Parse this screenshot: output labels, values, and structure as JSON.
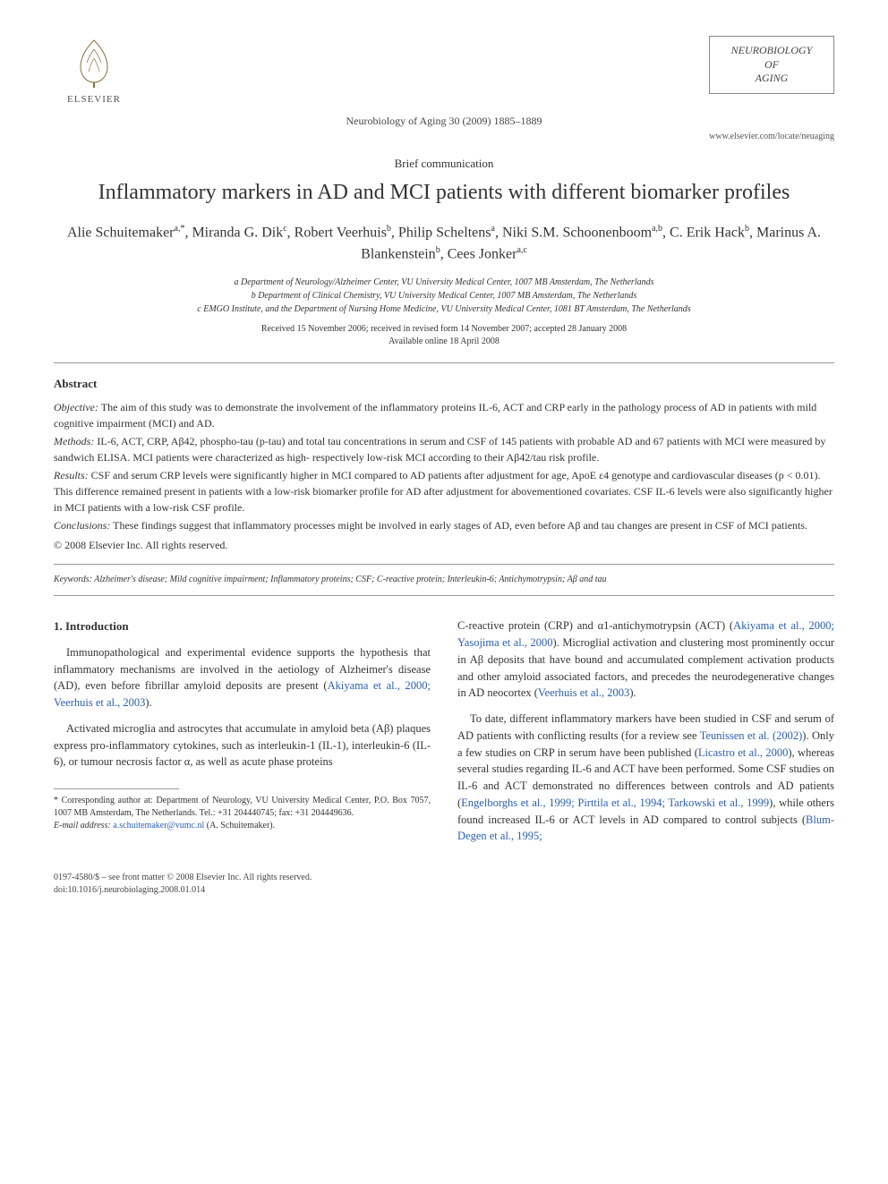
{
  "header": {
    "publisher_name": "ELSEVIER",
    "citation": "Neurobiology of Aging 30 (2009) 1885–1889",
    "journal_name_line1": "NEUROBIOLOGY",
    "journal_name_line2": "OF",
    "journal_name_line3": "AGING",
    "locate_url": "www.elsevier.com/locate/neuaging"
  },
  "article": {
    "type": "Brief communication",
    "title": "Inflammatory markers in AD and MCI patients with different biomarker profiles",
    "authors_html": "Alie Schuitemaker<sup>a,*</sup>, Miranda G. Dik<sup>c</sup>, Robert Veerhuis<sup>b</sup>, Philip Scheltens<sup>a</sup>, Niki S.M. Schoonenboom<sup>a,b</sup>, C. Erik Hack<sup>b</sup>, Marinus A. Blankenstein<sup>b</sup>, Cees Jonker<sup>a,c</sup>",
    "affiliations": [
      "a Department of Neurology/Alzheimer Center, VU University Medical Center, 1007 MB Amsterdam, The Netherlands",
      "b Department of Clinical Chemistry, VU University Medical Center, 1007 MB Amsterdam, The Netherlands",
      "c EMGO Institute, and the Department of Nursing Home Medicine, VU University Medical Center, 1081 BT Amsterdam, The Netherlands"
    ],
    "dates_line1": "Received 15 November 2006; received in revised form 14 November 2007; accepted 28 January 2008",
    "dates_line2": "Available online 18 April 2008"
  },
  "abstract": {
    "heading": "Abstract",
    "objective_label": "Objective:",
    "objective": " The aim of this study was to demonstrate the involvement of the inflammatory proteins IL-6, ACT and CRP early in the pathology process of AD in patients with mild cognitive impairment (MCI) and AD.",
    "methods_label": "Methods:",
    "methods": " IL-6, ACT, CRP, Aβ42, phospho-tau (p-tau) and total tau concentrations in serum and CSF of 145 patients with probable AD and 67 patients with MCI were measured by sandwich ELISA. MCI patients were characterized as high- respectively low-risk MCI according to their Aβ42/tau risk profile.",
    "results_label": "Results:",
    "results": " CSF and serum CRP levels were significantly higher in MCI compared to AD patients after adjustment for age, ApoE ε4 genotype and cardiovascular diseases (p < 0.01). This difference remained present in patients with a low-risk biomarker profile for AD after adjustment for abovementioned covariates. CSF IL-6 levels were also significantly higher in MCI patients with a low-risk CSF profile.",
    "conclusions_label": "Conclusions:",
    "conclusions": " These findings suggest that inflammatory processes might be involved in early stages of AD, even before Aβ and tau changes are present in CSF of MCI patients.",
    "copyright": "© 2008 Elsevier Inc. All rights reserved."
  },
  "keywords": {
    "label": "Keywords:",
    "text": " Alzheimer's disease; Mild cognitive impairment; Inflammatory proteins; CSF; C-reactive protein; Interleukin-6; Antichymotrypsin; Aβ and tau"
  },
  "body": {
    "section1_heading": "1. Introduction",
    "col1_p1_a": "Immunopathological and experimental evidence supports the hypothesis that inflammatory mechanisms are involved in the aetiology of Alzheimer's disease (AD), even before fibrillar amyloid deposits are present (",
    "col1_p1_ref": "Akiyama et al., 2000; Veerhuis et al., 2003",
    "col1_p1_b": ").",
    "col1_p2": "Activated microglia and astrocytes that accumulate in amyloid beta (Aβ) plaques express pro-inflammatory cytokines, such as interleukin-1 (IL-1), interleukin-6 (IL-6), or tumour necrosis factor α, as well as acute phase proteins",
    "col2_p1_a": "C-reactive protein (CRP) and α1-antichymotrypsin (ACT) (",
    "col2_p1_ref1": "Akiyama et al., 2000; Yasojima et al., 2000",
    "col2_p1_b": "). Microglial activation and clustering most prominently occur in Aβ deposits that have bound and accumulated complement activation products and other amyloid associated factors, and precedes the neurodegenerative changes in AD neocortex (",
    "col2_p1_ref2": "Veerhuis et al., 2003",
    "col2_p1_c": ").",
    "col2_p2_a": "To date, different inflammatory markers have been studied in CSF and serum of AD patients with conflicting results (for a review see ",
    "col2_p2_ref1": "Teunissen et al. (2002)",
    "col2_p2_b": "). Only a few studies on CRP in serum have been published (",
    "col2_p2_ref2": "Licastro et al., 2000",
    "col2_p2_c": "), whereas several studies regarding IL-6 and ACT have been performed. Some CSF studies on IL-6 and ACT demonstrated no differences between controls and AD patients (",
    "col2_p2_ref3": "Engelborghs et al., 1999; Pirttila et al., 1994; Tarkowski et al., 1999",
    "col2_p2_d": "), while others found increased IL-6 or ACT levels in AD compared to control subjects (",
    "col2_p2_ref4": "Blum-Degen et al., 1995;",
    "col2_p2_e": ""
  },
  "footnote": {
    "corr_label": "*",
    "corr_text": " Corresponding author at: Department of Neurology, VU University Medical Center, P.O. Box 7057, 1007 MB Amsterdam, The Netherlands. Tel.: +31 204440745; fax: +31 204449636.",
    "email_label": "E-mail address:",
    "email": " a.schuitemaker@vumc.nl",
    "email_who": " (A. Schuitemaker)."
  },
  "footer": {
    "issn_line": "0197-4580/$ – see front matter © 2008 Elsevier Inc. All rights reserved.",
    "doi_line": "doi:10.1016/j.neurobiolaging.2008.01.014"
  },
  "colors": {
    "ref_color": "#2a5db0",
    "text_color": "#333333",
    "rule_color": "#999999"
  }
}
